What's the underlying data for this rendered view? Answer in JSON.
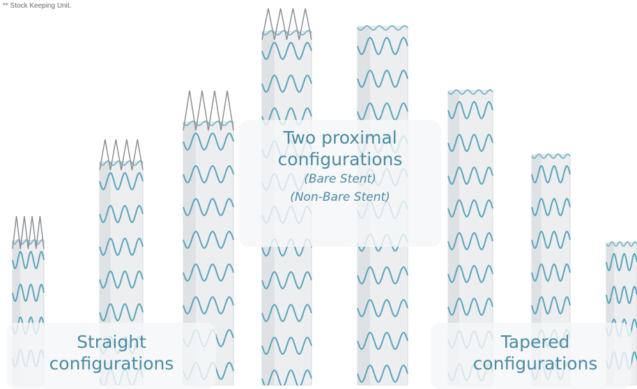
{
  "footnote": "** Stock Keeping Unit.",
  "labels": {
    "proximal": {
      "title": "Two proximal configurations",
      "bare": "(Bare Stent)",
      "non_bare": "(Non-Bare Stent)"
    },
    "straight": "Straight configurations",
    "tapered": "Tapered configurations"
  }
}
